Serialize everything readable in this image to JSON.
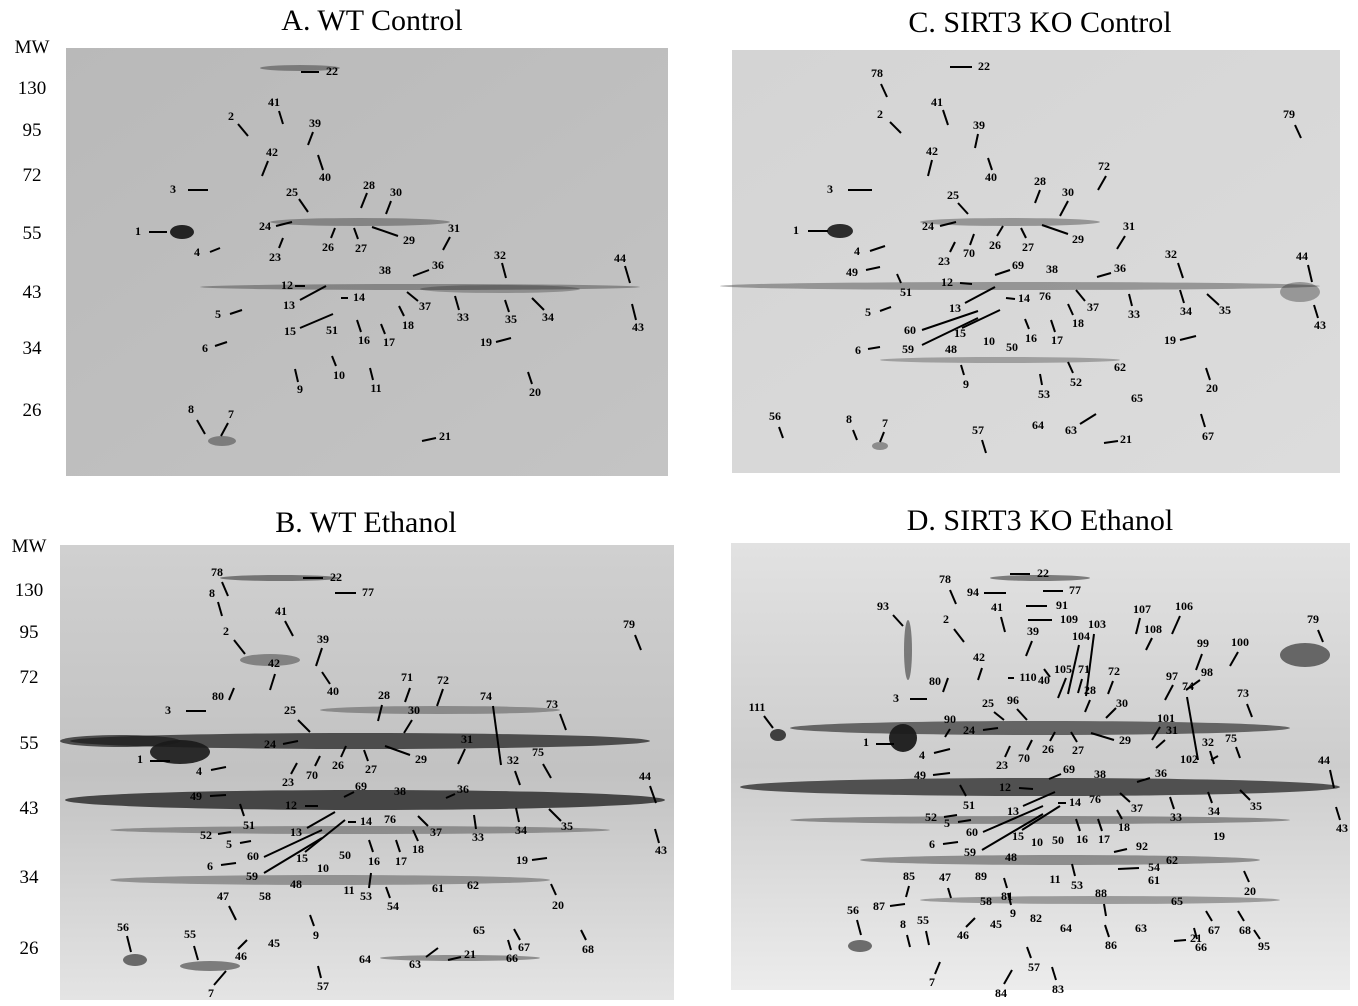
{
  "panels": [
    {
      "title": "A. WT Control",
      "mw_title": "MW",
      "mw": [
        "130",
        "95",
        "72",
        "55",
        "43",
        "34",
        "26"
      ],
      "spots": [
        "22",
        "41",
        "2",
        "39",
        "42",
        "40",
        "3",
        "25",
        "28",
        "30",
        "24",
        "26",
        "27",
        "29",
        "23",
        "1",
        "4",
        "31",
        "36",
        "38",
        "32",
        "44",
        "12",
        "13",
        "14",
        "37",
        "18",
        "33",
        "35",
        "34",
        "43",
        "5",
        "15",
        "51",
        "16",
        "17",
        "6",
        "19",
        "10",
        "9",
        "11",
        "20",
        "8",
        "7",
        "21"
      ]
    },
    {
      "title": "B. WT Ethanol",
      "mw_title": "MW",
      "mw": [
        "130",
        "95",
        "72",
        "55",
        "43",
        "34",
        "26"
      ],
      "spots": [
        "78",
        "22",
        "8",
        "77",
        "41",
        "2",
        "39",
        "79",
        "42",
        "40",
        "71",
        "72",
        "28",
        "30",
        "3",
        "80",
        "74",
        "73",
        "25",
        "24",
        "26",
        "27",
        "29",
        "31",
        "1",
        "70",
        "4",
        "75",
        "32",
        "23",
        "44",
        "49",
        "69",
        "38",
        "36",
        "12",
        "51",
        "33",
        "34",
        "35",
        "43",
        "13",
        "14",
        "76",
        "37",
        "52",
        "5",
        "18",
        "60",
        "15",
        "16",
        "17",
        "50",
        "10",
        "6",
        "59",
        "19",
        "48",
        "61",
        "62",
        "11",
        "53",
        "54",
        "58",
        "20",
        "47",
        "9",
        "45",
        "68",
        "56",
        "55",
        "65",
        "67",
        "66",
        "46",
        "64",
        "63",
        "21",
        "7",
        "57"
      ]
    },
    {
      "title": "C. SIRT3 KO Control",
      "spots": [
        "22",
        "78",
        "41",
        "2",
        "39",
        "79",
        "42",
        "40",
        "72",
        "3",
        "28",
        "30",
        "25",
        "24",
        "26",
        "27",
        "29",
        "1",
        "70",
        "23",
        "31",
        "4",
        "49",
        "51",
        "69",
        "38",
        "36",
        "32",
        "44",
        "12",
        "13",
        "14",
        "76",
        "37",
        "18",
        "33",
        "34",
        "35",
        "43",
        "5",
        "60",
        "15",
        "59",
        "16",
        "17",
        "6",
        "48",
        "10",
        "50",
        "19",
        "62",
        "52",
        "9",
        "53",
        "20",
        "65",
        "56",
        "8",
        "7",
        "64",
        "63",
        "67",
        "57",
        "21"
      ]
    },
    {
      "title": "D. SIRT3 KO Ethanol",
      "spots": [
        "22",
        "78",
        "94",
        "77",
        "93",
        "41",
        "91",
        "107",
        "106",
        "109",
        "103",
        "108",
        "79",
        "2",
        "39",
        "104",
        "99",
        "100",
        "111",
        "42",
        "98",
        "110",
        "40",
        "105",
        "71",
        "72",
        "97",
        "74",
        "73",
        "80",
        "28",
        "30",
        "3",
        "25",
        "96",
        "101",
        "31",
        "24",
        "90",
        "26",
        "27",
        "29",
        "1",
        "32",
        "75",
        "4",
        "23",
        "70",
        "102",
        "44",
        "49",
        "69",
        "38",
        "36",
        "12",
        "51",
        "37",
        "33",
        "34",
        "35",
        "43",
        "13",
        "14",
        "76",
        "52",
        "5",
        "18",
        "60",
        "15",
        "16",
        "17",
        "10",
        "50",
        "92",
        "19",
        "6",
        "59",
        "48",
        "62",
        "54",
        "11",
        "53",
        "61",
        "89",
        "20",
        "85",
        "47",
        "81",
        "58",
        "9",
        "88",
        "87",
        "65",
        "82",
        "45",
        "64",
        "56",
        "55",
        "8",
        "63",
        "67",
        "68",
        "46",
        "21",
        "86",
        "66",
        "95",
        "57",
        "7",
        "84",
        "83"
      ]
    }
  ]
}
